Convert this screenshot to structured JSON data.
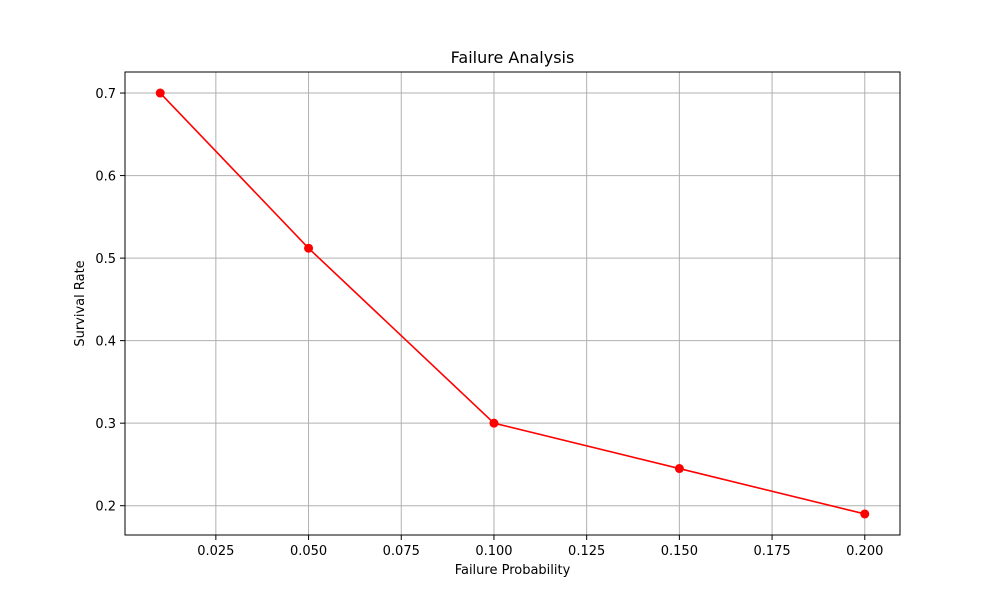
{
  "chart_data": {
    "type": "line",
    "title": "Failure Analysis",
    "xlabel": "Failure Probability",
    "ylabel": "Survival Rate",
    "xlim": [
      0.0005,
      0.2095
    ],
    "ylim": [
      0.1645,
      0.7255
    ],
    "x_ticks": [
      0.025,
      0.05,
      0.075,
      0.1,
      0.125,
      0.15,
      0.175,
      0.2
    ],
    "x_tick_labels": [
      "0.025",
      "0.050",
      "0.075",
      "0.100",
      "0.125",
      "0.150",
      "0.175",
      "0.200"
    ],
    "y_ticks": [
      0.2,
      0.3,
      0.4,
      0.5,
      0.6,
      0.7
    ],
    "y_tick_labels": [
      "0.2",
      "0.3",
      "0.4",
      "0.5",
      "0.6",
      "0.7"
    ],
    "grid": true,
    "series": [
      {
        "color": "#ff0000",
        "marker": "circle",
        "x": [
          0.01,
          0.05,
          0.1,
          0.15,
          0.2
        ],
        "y": [
          0.7,
          0.512,
          0.3,
          0.245,
          0.19
        ]
      }
    ]
  }
}
